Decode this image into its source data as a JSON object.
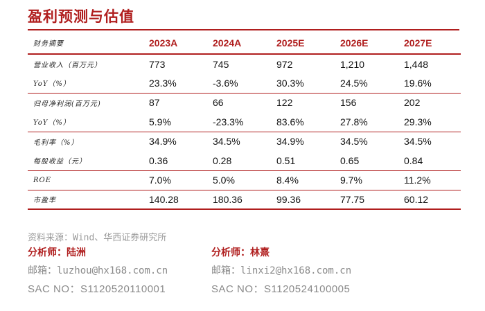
{
  "title": "盈利预测与估值",
  "table": {
    "header_label": "财务摘要",
    "years": [
      "2023A",
      "2024A",
      "2025E",
      "2026E",
      "2027E"
    ],
    "rows": [
      {
        "label": "营业收入（百万元）",
        "values": [
          "773",
          "745",
          "972",
          "1,210",
          "1,448"
        ]
      },
      {
        "label": "YoY（%）",
        "values": [
          "23.3%",
          "-3.6%",
          "30.3%",
          "24.5%",
          "19.6%"
        ]
      },
      {
        "label": "归母净利润(百万元)",
        "values": [
          "87",
          "66",
          "122",
          "156",
          "202"
        ]
      },
      {
        "label": "YoY（%）",
        "values": [
          "5.9%",
          "-23.3%",
          "83.6%",
          "27.8%",
          "29.3%"
        ]
      },
      {
        "label": "毛利率（%）",
        "values": [
          "34.9%",
          "34.5%",
          "34.9%",
          "34.5%",
          "34.5%"
        ]
      },
      {
        "label": "每股收益（元）",
        "values": [
          "0.36",
          "0.28",
          "0.51",
          "0.65",
          "0.84"
        ]
      },
      {
        "label": "ROE",
        "values": [
          "7.0%",
          "5.0%",
          "8.4%",
          "9.7%",
          "11.2%"
        ]
      },
      {
        "label": "市盈率",
        "values": [
          "140.28",
          "180.36",
          "99.36",
          "77.75",
          "60.12"
        ]
      }
    ]
  },
  "source": "资料来源：Wind、华西证券研究所",
  "analysts": [
    {
      "name": "分析师：陆洲",
      "email": "邮箱：luzhou@hx168.com.cn",
      "sac": "SAC NO：S1120520110001"
    },
    {
      "name": "分析师：林熹",
      "email": "邮箱：linxi2@hx168.com.cn",
      "sac": "SAC NO：S1120524100005"
    }
  ],
  "colors": {
    "accent": "#b01e1e",
    "muted": "#8a8a8a"
  }
}
